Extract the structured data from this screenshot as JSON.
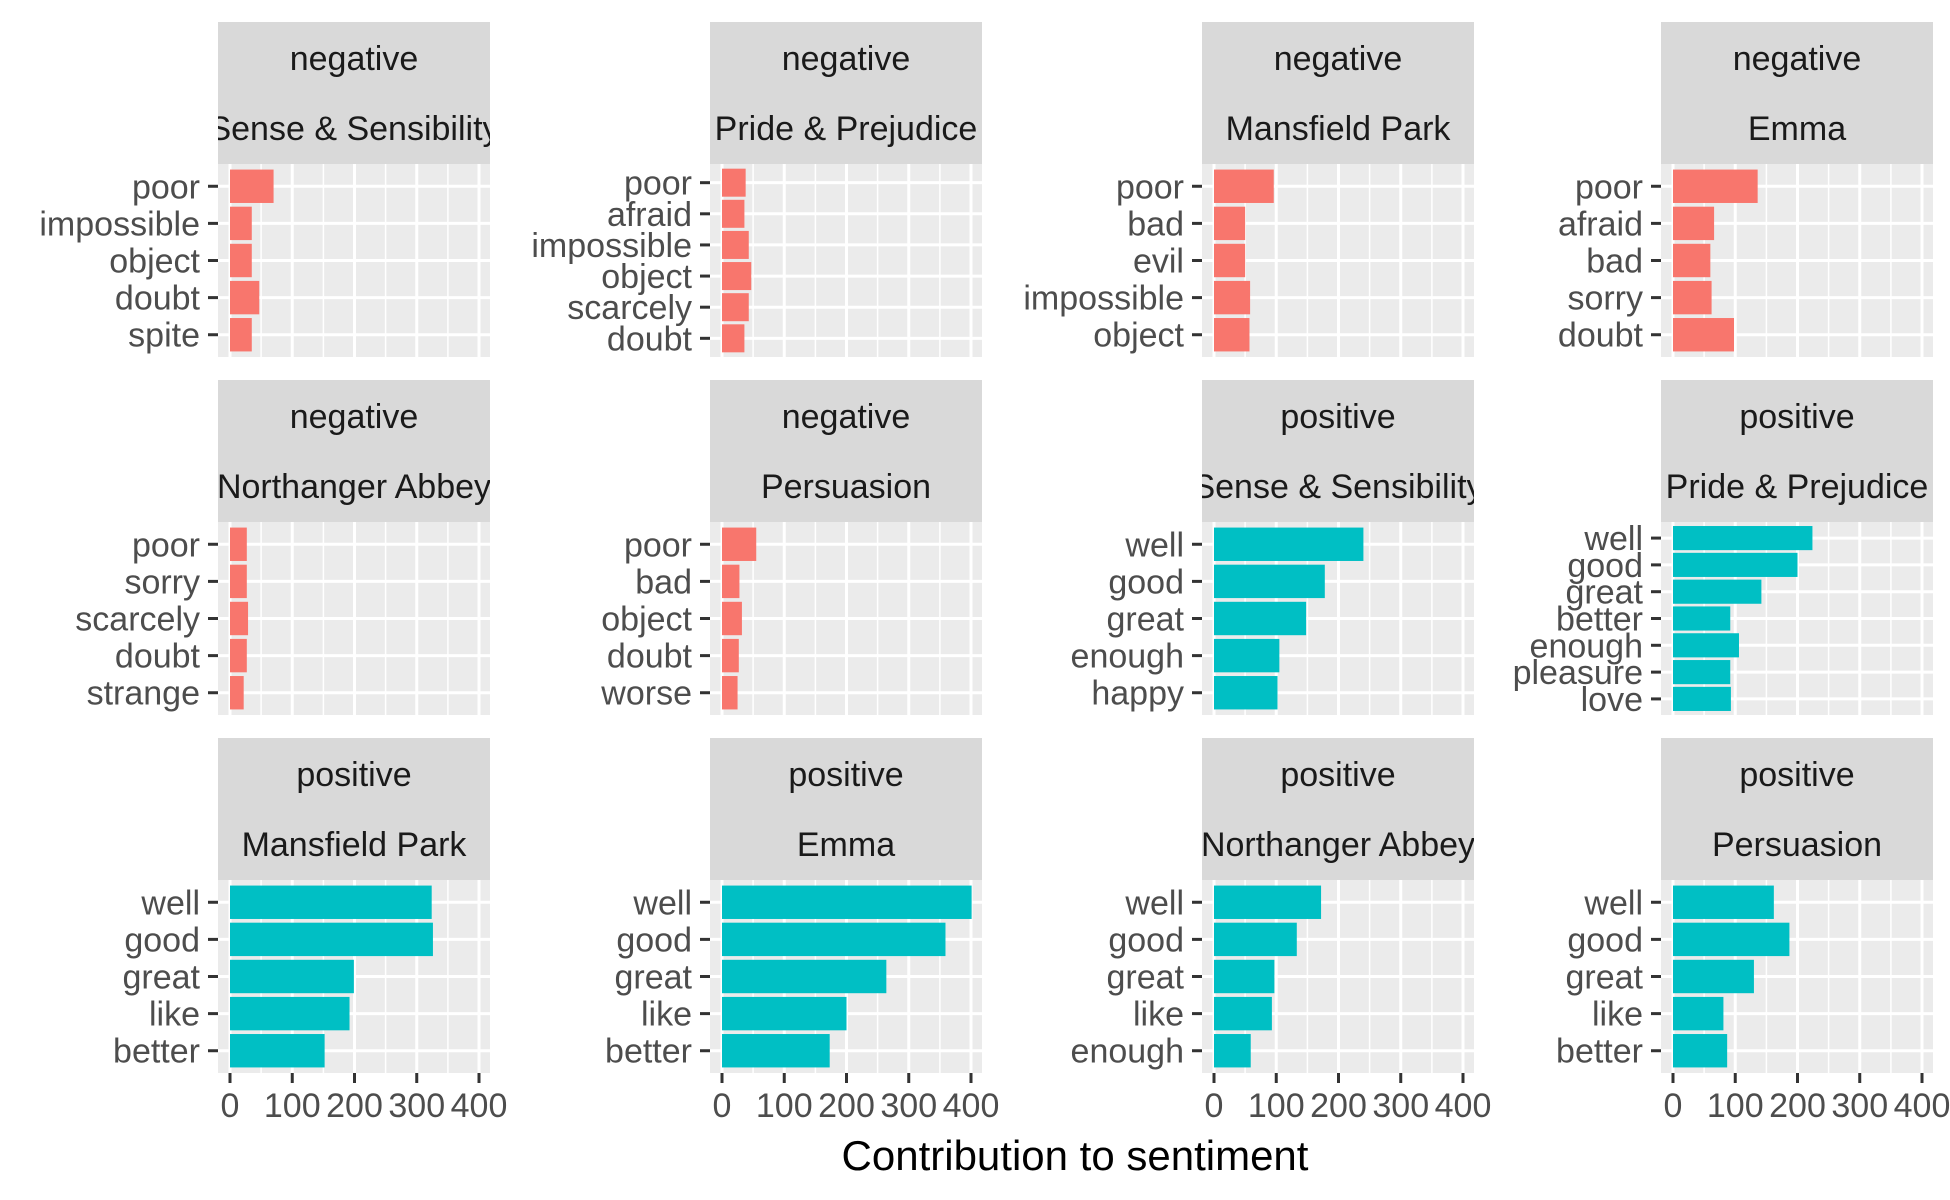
{
  "chart_data": {
    "type": "bar",
    "orientation": "horizontal",
    "xlabel": "Contribution to sentiment",
    "ylabel": "",
    "xlim": [
      0,
      400
    ],
    "x_ticks": [
      0,
      100,
      200,
      300,
      400
    ],
    "x_tick_labels": [
      "0",
      "100",
      "200",
      "300",
      "400"
    ],
    "grid": true,
    "facet_layout": "3 rows x 4 columns",
    "colors": {
      "negative": "#F8766D",
      "positive": "#00BFC4",
      "panel_bg": "#EBEBEB",
      "strip_bg": "#D9D9D9",
      "grid": "#FFFFFF"
    },
    "panels": [
      {
        "sentiment": "negative",
        "book": "Sense & Sensibility",
        "words": [
          "poor",
          "impossible",
          "object",
          "doubt",
          "spite"
        ],
        "values": [
          70,
          35,
          35,
          47,
          35
        ]
      },
      {
        "sentiment": "negative",
        "book": "Pride & Prejudice",
        "words": [
          "poor",
          "afraid",
          "impossible",
          "object",
          "scarcely",
          "doubt"
        ],
        "values": [
          38,
          36,
          43,
          47,
          43,
          36
        ]
      },
      {
        "sentiment": "negative",
        "book": "Mansfield Park",
        "words": [
          "poor",
          "bad",
          "evil",
          "impossible",
          "object"
        ],
        "values": [
          96,
          50,
          50,
          58,
          57
        ]
      },
      {
        "sentiment": "negative",
        "book": "Emma",
        "words": [
          "poor",
          "afraid",
          "bad",
          "sorry",
          "doubt"
        ],
        "values": [
          136,
          66,
          60,
          62,
          98
        ]
      },
      {
        "sentiment": "negative",
        "book": "Northanger Abbey",
        "words": [
          "poor",
          "sorry",
          "scarcely",
          "doubt",
          "strange"
        ],
        "values": [
          27,
          27,
          29,
          27,
          22
        ]
      },
      {
        "sentiment": "negative",
        "book": "Persuasion",
        "words": [
          "poor",
          "bad",
          "object",
          "doubt",
          "worse"
        ],
        "values": [
          55,
          28,
          32,
          27,
          25
        ]
      },
      {
        "sentiment": "positive",
        "book": "Sense & Sensibility",
        "words": [
          "well",
          "good",
          "great",
          "enough",
          "happy"
        ],
        "values": [
          240,
          178,
          148,
          105,
          102
        ]
      },
      {
        "sentiment": "positive",
        "book": "Pride & Prejudice",
        "words": [
          "well",
          "good",
          "great",
          "better",
          "enough",
          "pleasure",
          "love"
        ],
        "values": [
          224,
          200,
          142,
          92,
          106,
          92,
          93
        ]
      },
      {
        "sentiment": "positive",
        "book": "Mansfield Park",
        "words": [
          "well",
          "good",
          "great",
          "like",
          "better"
        ],
        "values": [
          324,
          326,
          199,
          192,
          152
        ]
      },
      {
        "sentiment": "positive",
        "book": "Emma",
        "words": [
          "well",
          "good",
          "great",
          "like",
          "better"
        ],
        "values": [
          401,
          359,
          264,
          200,
          173
        ]
      },
      {
        "sentiment": "positive",
        "book": "Northanger Abbey",
        "words": [
          "well",
          "good",
          "great",
          "like",
          "enough"
        ],
        "values": [
          172,
          133,
          97,
          93,
          59
        ]
      },
      {
        "sentiment": "positive",
        "book": "Persuasion",
        "words": [
          "well",
          "good",
          "great",
          "like",
          "better"
        ],
        "values": [
          162,
          187,
          130,
          81,
          87
        ]
      }
    ]
  }
}
